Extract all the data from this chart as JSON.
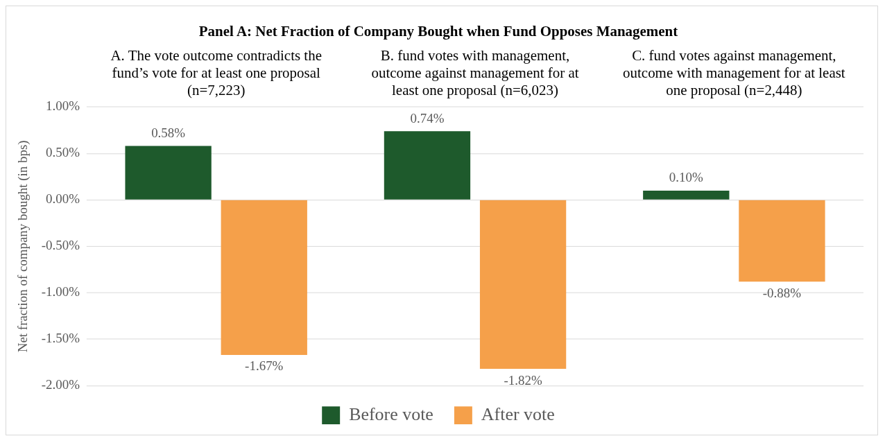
{
  "chart_data": {
    "type": "bar",
    "title": "Panel A: Net Fraction of Company Bought when Fund Opposes Management",
    "ylabel": "Net fraction of company bought (in bps)",
    "categories": [
      "A. The vote outcome contradicts the fund’s vote for at least one proposal (n=7,223)",
      "B. fund votes with management, outcome against management for at least one proposal (n=6,023)",
      "C. fund votes against management, outcome with management for at least one proposal (n=2,448)"
    ],
    "series": [
      {
        "name": "Before vote",
        "color": "#1e5a2c",
        "values": [
          0.58,
          0.74,
          0.1
        ],
        "value_labels": [
          "0.58%",
          "0.74%",
          "0.10%"
        ]
      },
      {
        "name": "After vote",
        "color": "#f5a04a",
        "values": [
          -1.67,
          -1.82,
          -0.88
        ],
        "value_labels": [
          "-1.67%",
          "-1.82%",
          "-0.88%"
        ]
      }
    ],
    "ylim": [
      -2,
      1
    ],
    "yticks": [
      {
        "value": -2,
        "label": "-2.00%"
      },
      {
        "value": -1.5,
        "label": "-1.50%"
      },
      {
        "value": -1,
        "label": "-1.00%"
      },
      {
        "value": -0.5,
        "label": "-0.50%"
      },
      {
        "value": 0,
        "label": "0.00%"
      },
      {
        "value": 0.5,
        "label": "0.50%"
      },
      {
        "value": 1,
        "label": "1.00%"
      }
    ],
    "grid": "y",
    "legend": "bottom"
  }
}
